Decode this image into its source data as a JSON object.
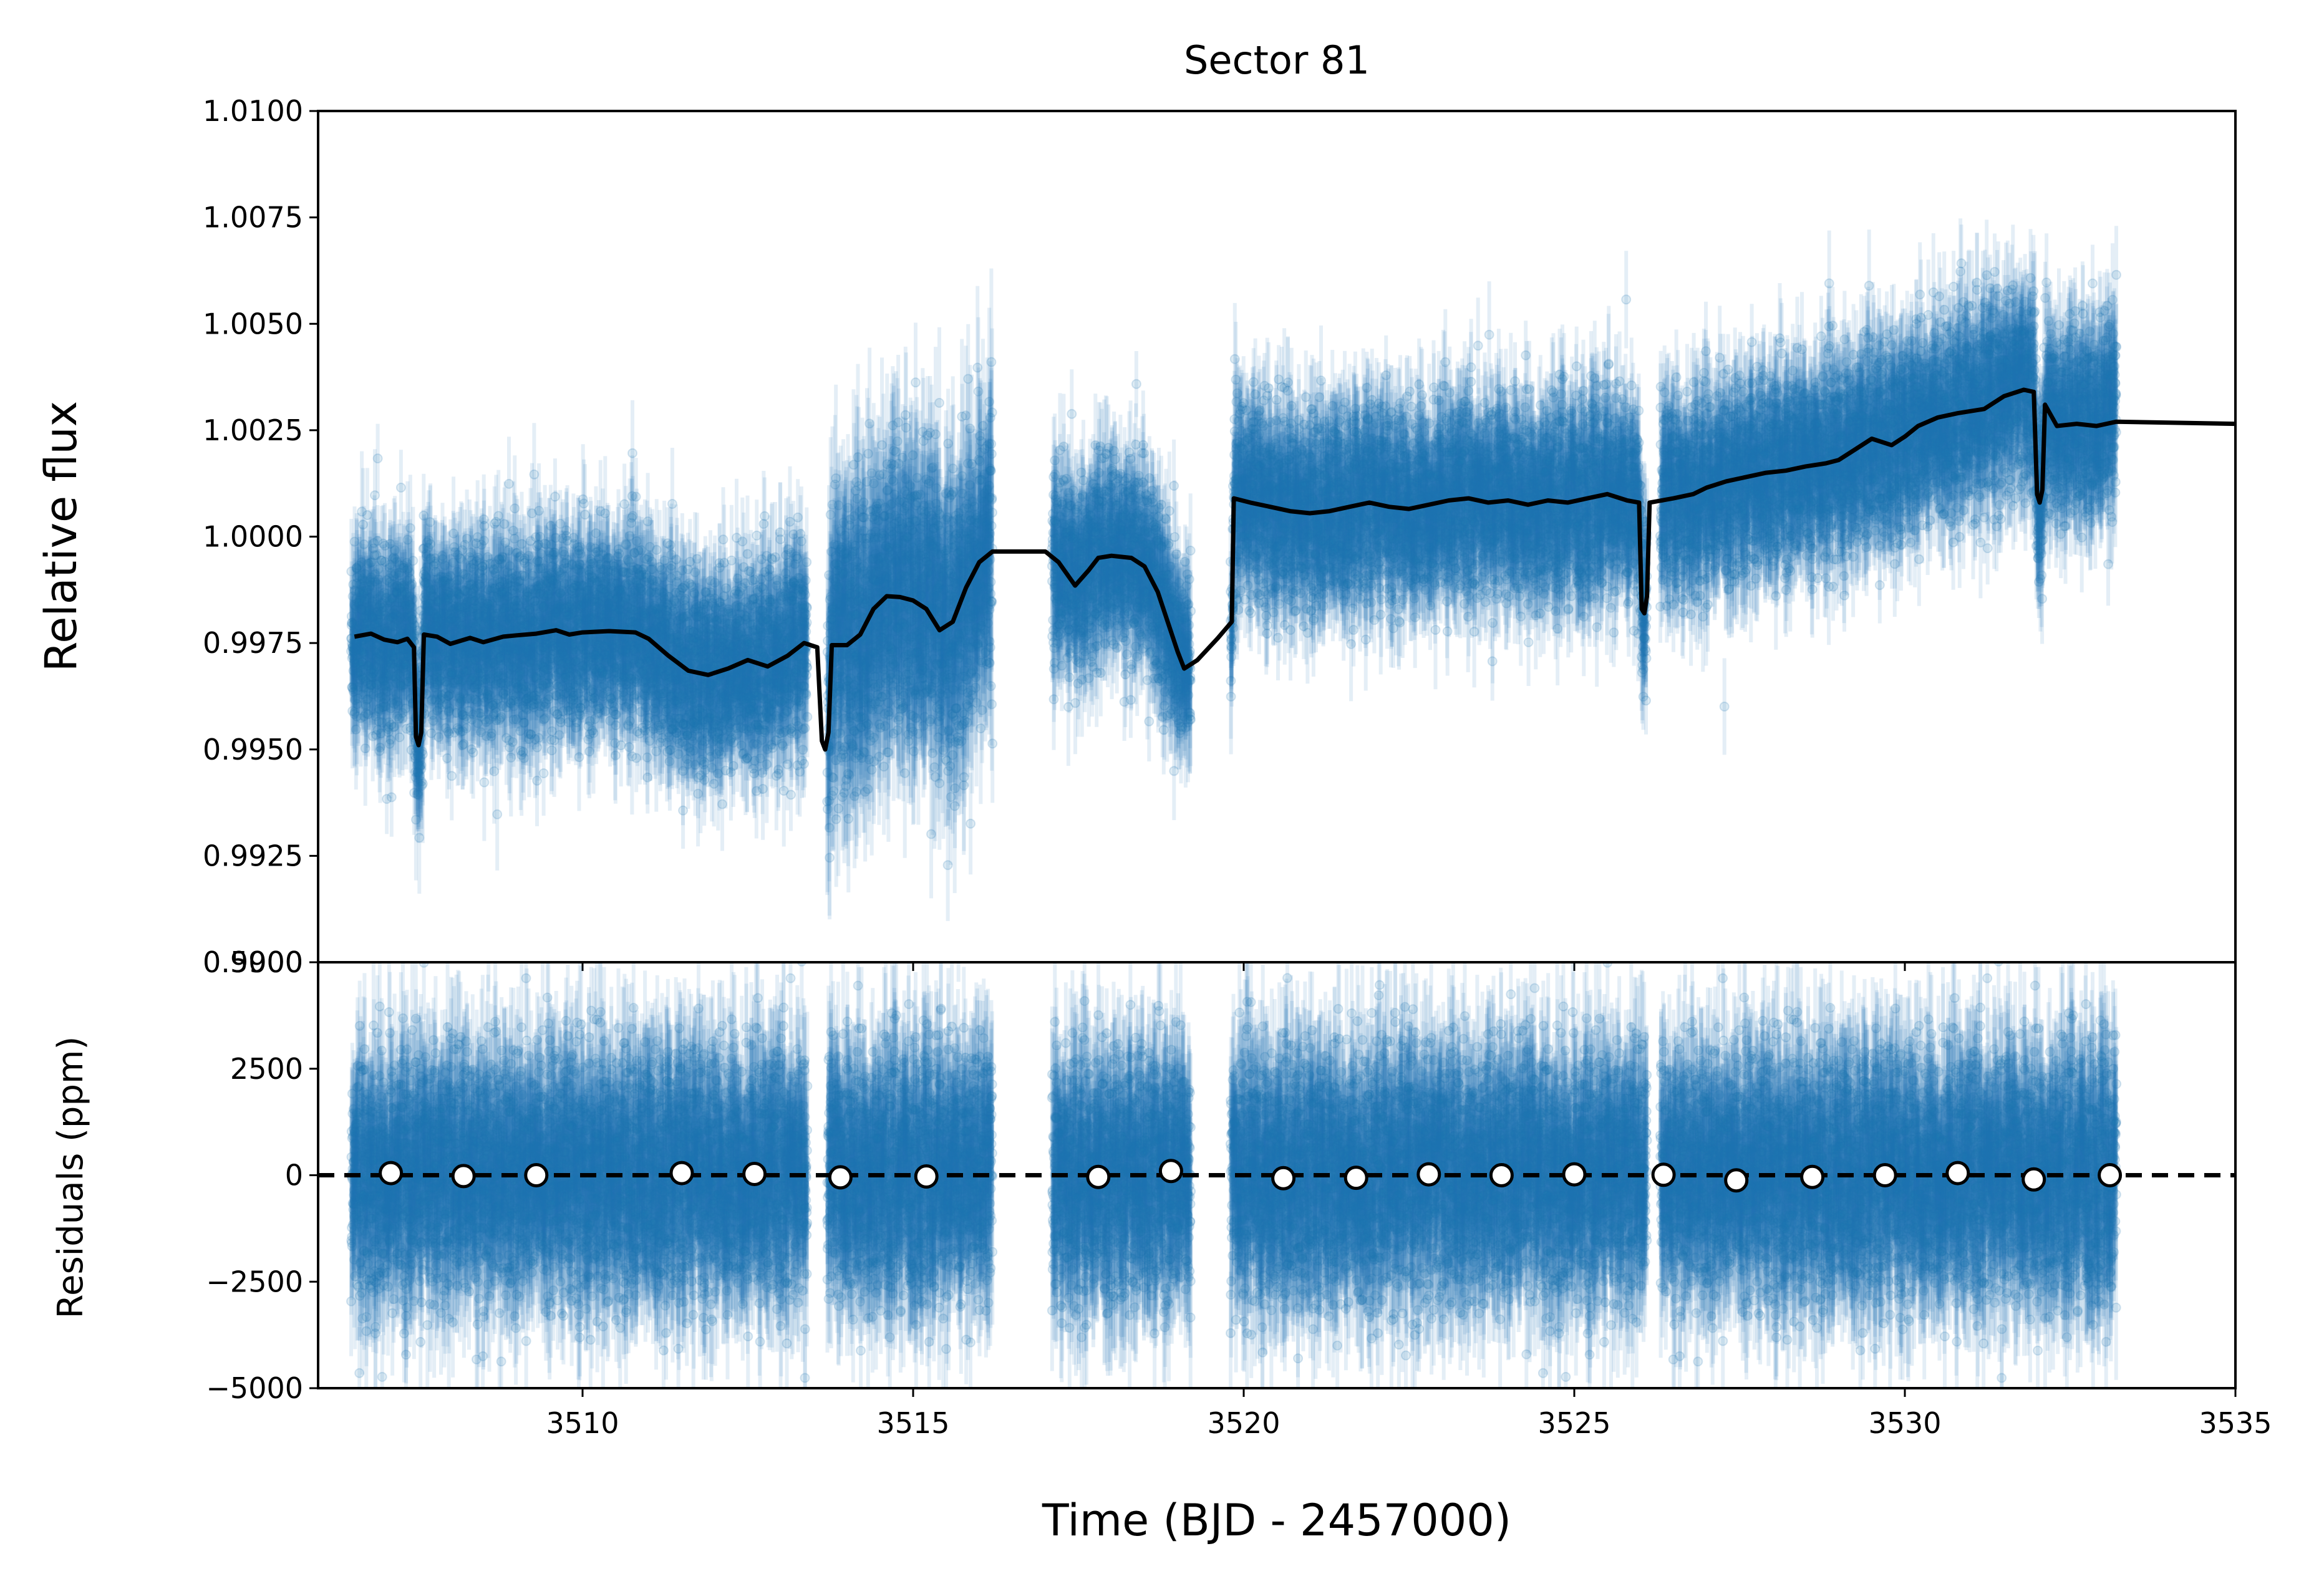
{
  "chart_data": [
    {
      "type": "scatter",
      "panel": "top",
      "title": "Sector 81",
      "xlabel": "",
      "ylabel": "Relative flux",
      "xlim": [
        3506.0,
        3535.0
      ],
      "ylim": [
        0.99,
        1.01
      ],
      "yticks": [
        0.99,
        0.9925,
        0.995,
        0.9975,
        1.0,
        1.0025,
        1.005,
        1.0075,
        1.01
      ],
      "ytick_labels": [
        "0.9900",
        "0.9925",
        "0.9950",
        "0.9975",
        "1.0000",
        "1.0025",
        "1.0050",
        "1.0075",
        "1.0100"
      ],
      "xticks": [
        3510,
        3515,
        3520,
        3525,
        3530
      ],
      "colors": {
        "data": "#1f77b4",
        "model": "#000000"
      },
      "segments": [
        {
          "start": 3506.5,
          "end": 3513.4,
          "trend": [
            [
              3506.5,
              0.9963
            ],
            [
              3508.5,
              0.9962
            ],
            [
              3510.0,
              0.9966
            ],
            [
              3511.0,
              0.9966
            ],
            [
              3512.0,
              0.9958
            ],
            [
              3513.4,
              0.996
            ]
          ],
          "scatter": 0.0011
        },
        {
          "start": 3513.7,
          "end": 3516.2,
          "trend": [
            [
              3513.7,
              0.9962
            ],
            [
              3514.2,
              0.9975
            ],
            [
              3514.7,
              0.999
            ],
            [
              3515.2,
              0.9984
            ],
            [
              3515.6,
              0.9985
            ],
            [
              3516.2,
              0.9995
            ]
          ],
          "scatter": 0.0017
        },
        {
          "start": 3517.1,
          "end": 3519.2,
          "trend": [
            [
              3517.1,
              0.9985
            ],
            [
              3517.7,
              0.999
            ],
            [
              3518.2,
              0.999
            ],
            [
              3518.7,
              0.9975
            ],
            [
              3519.2,
              0.9963
            ]
          ],
          "scatter": 0.0011
        },
        {
          "start": 3519.8,
          "end": 3526.1,
          "trend": [
            [
              3519.8,
              1.0008
            ],
            [
              3521.0,
              1.0005
            ],
            [
              3523.0,
              1.0008
            ],
            [
              3525.0,
              1.0009
            ],
            [
              3526.1,
              1.0008
            ]
          ],
          "scatter": 0.0011
        },
        {
          "start": 3526.3,
          "end": 3533.2,
          "trend": [
            [
              3526.3,
              1.001
            ],
            [
              3528.0,
              1.0015
            ],
            [
              3530.0,
              1.0025
            ],
            [
              3532.0,
              1.0035
            ],
            [
              3533.2,
              1.0027
            ]
          ],
          "scatter": 0.0011
        }
      ],
      "model_line": [
        [
          3506.55,
          0.99765
        ],
        [
          3506.8,
          0.99772
        ],
        [
          3507.0,
          0.99758
        ],
        [
          3507.2,
          0.99752
        ],
        [
          3507.35,
          0.9976
        ],
        [
          3507.45,
          0.9974
        ],
        [
          3507.48,
          0.9953
        ],
        [
          3507.52,
          0.9951
        ],
        [
          3507.56,
          0.9954
        ],
        [
          3507.6,
          0.9977
        ],
        [
          3507.8,
          0.99765
        ],
        [
          3508.0,
          0.99748
        ],
        [
          3508.3,
          0.99762
        ],
        [
          3508.5,
          0.99752
        ],
        [
          3508.8,
          0.99765
        ],
        [
          3509.0,
          0.99768
        ],
        [
          3509.3,
          0.99772
        ],
        [
          3509.6,
          0.9978
        ],
        [
          3509.8,
          0.9977
        ],
        [
          3510.0,
          0.99775
        ],
        [
          3510.4,
          0.99778
        ],
        [
          3510.8,
          0.99775
        ],
        [
          3511.0,
          0.9976
        ],
        [
          3511.3,
          0.9972
        ],
        [
          3511.6,
          0.99685
        ],
        [
          3511.9,
          0.99675
        ],
        [
          3512.2,
          0.9969
        ],
        [
          3512.5,
          0.9971
        ],
        [
          3512.8,
          0.99695
        ],
        [
          3513.1,
          0.9972
        ],
        [
          3513.35,
          0.9975
        ],
        [
          3513.55,
          0.9974
        ],
        [
          3513.62,
          0.9952
        ],
        [
          3513.67,
          0.995
        ],
        [
          3513.72,
          0.9954
        ],
        [
          3513.77,
          0.99745
        ],
        [
          3514.0,
          0.99745
        ],
        [
          3514.2,
          0.9977
        ],
        [
          3514.4,
          0.9983
        ],
        [
          3514.6,
          0.9986
        ],
        [
          3514.8,
          0.99858
        ],
        [
          3515.0,
          0.9985
        ],
        [
          3515.2,
          0.9983
        ],
        [
          3515.4,
          0.9978
        ],
        [
          3515.6,
          0.998
        ],
        [
          3515.8,
          0.9988
        ],
        [
          3516.0,
          0.9994
        ],
        [
          3516.2,
          0.99965
        ],
        [
          3517.0,
          0.99965
        ],
        [
          3517.2,
          0.9994
        ],
        [
          3517.45,
          0.99885
        ],
        [
          3517.65,
          0.9992
        ],
        [
          3517.8,
          0.9995
        ],
        [
          3518.0,
          0.99955
        ],
        [
          3518.3,
          0.9995
        ],
        [
          3518.5,
          0.9993
        ],
        [
          3518.7,
          0.9987
        ],
        [
          3518.85,
          0.998
        ],
        [
          3519.0,
          0.9973
        ],
        [
          3519.1,
          0.9969
        ],
        [
          3519.3,
          0.9971
        ],
        [
          3519.6,
          0.9976
        ],
        [
          3519.82,
          0.998
        ],
        [
          3519.85,
          1.0009
        ],
        [
          3520.1,
          1.0008
        ],
        [
          3520.4,
          1.0007
        ],
        [
          3520.7,
          1.0006
        ],
        [
          3521.0,
          1.00055
        ],
        [
          3521.3,
          1.0006
        ],
        [
          3521.6,
          1.0007
        ],
        [
          3521.9,
          1.0008
        ],
        [
          3522.2,
          1.0007
        ],
        [
          3522.5,
          1.00065
        ],
        [
          3522.8,
          1.00075
        ],
        [
          3523.1,
          1.00085
        ],
        [
          3523.4,
          1.0009
        ],
        [
          3523.7,
          1.0008
        ],
        [
          3524.0,
          1.00085
        ],
        [
          3524.3,
          1.00075
        ],
        [
          3524.6,
          1.00085
        ],
        [
          3524.9,
          1.0008
        ],
        [
          3525.2,
          1.0009
        ],
        [
          3525.5,
          1.001
        ],
        [
          3525.8,
          1.00085
        ],
        [
          3525.98,
          1.0008
        ],
        [
          3526.02,
          0.9983
        ],
        [
          3526.06,
          0.9982
        ],
        [
          3526.1,
          0.9986
        ],
        [
          3526.14,
          1.0008
        ],
        [
          3526.5,
          1.0009
        ],
        [
          3526.8,
          1.001
        ],
        [
          3527.0,
          1.00115
        ],
        [
          3527.3,
          1.0013
        ],
        [
          3527.6,
          1.0014
        ],
        [
          3527.9,
          1.0015
        ],
        [
          3528.2,
          1.00155
        ],
        [
          3528.5,
          1.00165
        ],
        [
          3528.8,
          1.00172
        ],
        [
          3529.0,
          1.0018
        ],
        [
          3529.2,
          1.002
        ],
        [
          3529.5,
          1.0023
        ],
        [
          3529.8,
          1.00215
        ],
        [
          3530.0,
          1.00235
        ],
        [
          3530.2,
          1.0026
        ],
        [
          3530.5,
          1.0028
        ],
        [
          3530.8,
          1.0029
        ],
        [
          3531.0,
          1.00295
        ],
        [
          3531.2,
          1.003
        ],
        [
          3531.5,
          1.0033
        ],
        [
          3531.8,
          1.00345
        ],
        [
          3531.95,
          1.0034
        ],
        [
          3532.0,
          1.001
        ],
        [
          3532.04,
          1.0008
        ],
        [
          3532.08,
          1.0011
        ],
        [
          3532.12,
          1.0031
        ],
        [
          3532.3,
          1.0026
        ],
        [
          3532.6,
          1.00265
        ],
        [
          3532.9,
          1.0026
        ],
        [
          3533.2,
          1.0027
        ],
        [
          3535.0,
          1.00265
        ]
      ]
    },
    {
      "type": "scatter",
      "panel": "bottom",
      "title": "",
      "xlabel": "Time (BJD - 2457000)",
      "ylabel": "Residuals (ppm)",
      "xlim": [
        3506.0,
        3535.0
      ],
      "ylim": [
        -5000,
        5000
      ],
      "yticks": [
        -5000,
        -2500,
        0,
        2500,
        5000
      ],
      "ytick_labels": [
        "−5000",
        "−2500",
        "0",
        "2500",
        "5000"
      ],
      "xticks": [
        3510,
        3515,
        3520,
        3525,
        3530,
        3535
      ],
      "xtick_labels": [
        "3510",
        "3515",
        "3520",
        "3525",
        "3530",
        "3535"
      ],
      "zero_line": 0,
      "scatter_ppm": 1400,
      "segments": [
        [
          3506.5,
          3513.4
        ],
        [
          3513.7,
          3516.2
        ],
        [
          3517.1,
          3519.2
        ],
        [
          3519.8,
          3526.1
        ],
        [
          3526.3,
          3533.2
        ]
      ],
      "binned_residuals": {
        "x": [
          3507.1,
          3508.2,
          3509.3,
          3511.5,
          3512.6,
          3513.9,
          3515.2,
          3517.8,
          3518.9,
          3520.6,
          3521.7,
          3522.8,
          3523.9,
          3525.0,
          3526.35,
          3527.45,
          3528.6,
          3529.7,
          3530.8,
          3531.95,
          3533.1
        ],
        "y": [
          50,
          -20,
          0,
          50,
          30,
          -50,
          -30,
          -40,
          100,
          -70,
          -60,
          20,
          0,
          20,
          10,
          -120,
          -40,
          0,
          50,
          -100,
          0
        ]
      }
    }
  ]
}
